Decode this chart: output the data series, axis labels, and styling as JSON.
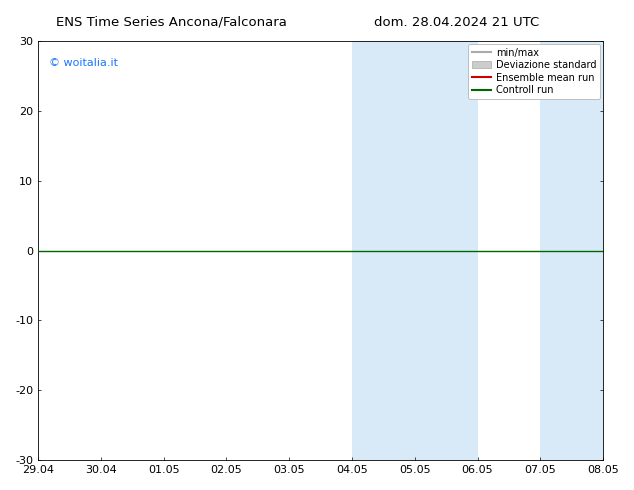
{
  "title": "ENS Time Series Ancona/Falconara      dom. 28.04.2024 21 UTC",
  "ylim": [
    -30,
    30
  ],
  "yticks": [
    -30,
    -20,
    -10,
    0,
    10,
    20,
    30
  ],
  "xtick_labels": [
    "29.04",
    "30.04",
    "01.05",
    "02.05",
    "03.05",
    "04.05",
    "05.05",
    "06.05",
    "07.05",
    "08.05"
  ],
  "xtick_positions": [
    0,
    1,
    2,
    3,
    4,
    5,
    6,
    7,
    8,
    9
  ],
  "xlim": [
    0,
    9
  ],
  "shaded_bands": [
    [
      5.0,
      6.0
    ],
    [
      6.0,
      7.0
    ],
    [
      8.0,
      8.5
    ],
    [
      8.5,
      9.0
    ]
  ],
  "band_color": "#d8eaf8",
  "watermark_text": "© woitalia.it",
  "watermark_color": "#1a75ff",
  "legend_entries": [
    {
      "label": "min/max",
      "color": "#aaaaaa",
      "type": "line",
      "lw": 1.5
    },
    {
      "label": "Deviazione standard",
      "color": "#cccccc",
      "type": "patch"
    },
    {
      "label": "Ensemble mean run",
      "color": "#cc0000",
      "type": "line",
      "lw": 1.5
    },
    {
      "label": "Controll run",
      "color": "#006600",
      "type": "line",
      "lw": 1.5
    }
  ],
  "zero_line_color": "#006600",
  "zero_line_lw": 1.0,
  "background_color": "#ffffff",
  "font_size": 8,
  "title_font_size": 9.5
}
